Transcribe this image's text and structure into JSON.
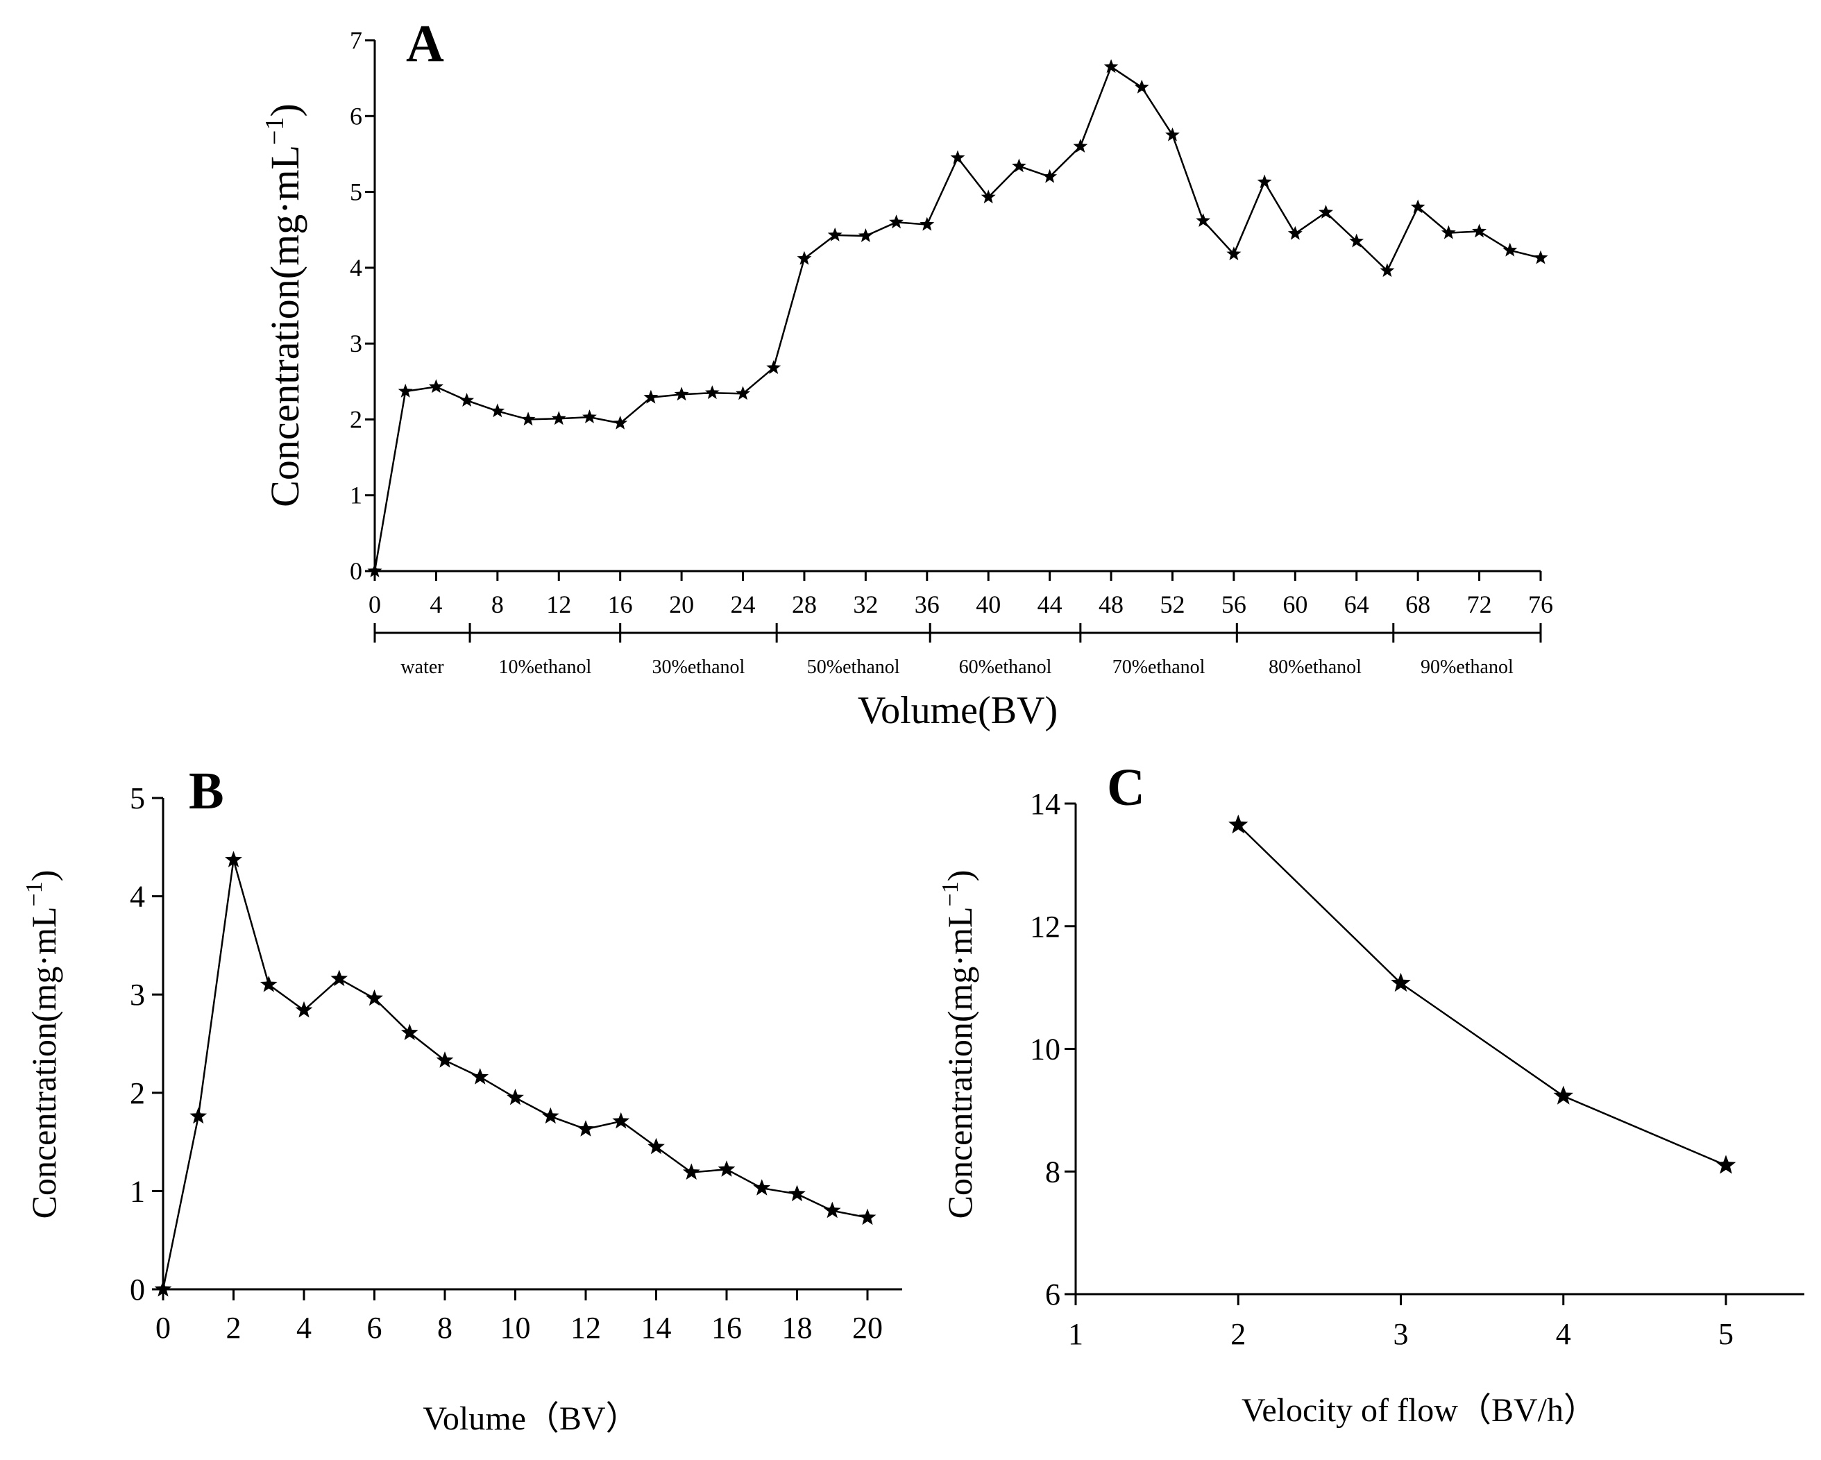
{
  "chart_data": [
    {
      "panel": "A",
      "type": "line",
      "marker": "star",
      "xlabel": "Volume(BV)",
      "ylabel": "Concentration(mg·mL",
      "ylabel_sup": "−1",
      "ylabel_close": ")",
      "xlim": [
        0,
        76
      ],
      "ylim": [
        0,
        7
      ],
      "xticks": [
        0,
        4,
        8,
        12,
        16,
        20,
        24,
        28,
        32,
        36,
        40,
        44,
        48,
        52,
        56,
        60,
        64,
        68,
        72,
        76
      ],
      "yticks": [
        0,
        1,
        2,
        3,
        4,
        5,
        6,
        7
      ],
      "x": [
        0,
        2,
        4,
        6,
        8,
        10,
        12,
        14,
        16,
        18,
        20,
        22,
        24,
        26,
        28,
        30,
        32,
        34,
        36,
        38,
        40,
        42,
        44,
        46,
        48,
        50,
        52,
        54,
        56,
        58,
        60,
        62,
        64,
        66,
        68,
        70,
        72,
        74,
        76
      ],
      "y": [
        0,
        2.37,
        2.43,
        2.25,
        2.11,
        2.0,
        2.01,
        2.03,
        1.95,
        2.29,
        2.33,
        2.35,
        2.34,
        2.68,
        4.12,
        4.43,
        4.42,
        4.6,
        4.57,
        5.45,
        4.93,
        5.34,
        5.2,
        5.6,
        6.65,
        6.38,
        5.75,
        4.62,
        4.18,
        5.13,
        4.45,
        4.73,
        4.35,
        3.96,
        4.8,
        4.46,
        4.48,
        4.23,
        4.13
      ],
      "solvent_segments": [
        {
          "label": "water",
          "start": 0,
          "end": 6.2
        },
        {
          "label": "10%ethanol",
          "start": 6.2,
          "end": 16
        },
        {
          "label": "30%ethanol",
          "start": 16,
          "end": 26.2
        },
        {
          "label": "50%ethanol",
          "start": 26.2,
          "end": 36.2
        },
        {
          "label": "60%ethanol",
          "start": 36.2,
          "end": 46
        },
        {
          "label": "70%ethanol",
          "start": 46,
          "end": 56.2
        },
        {
          "label": "80%ethanol",
          "start": 56.2,
          "end": 66.4
        },
        {
          "label": "90%ethanol",
          "start": 66.4,
          "end": 76
        }
      ]
    },
    {
      "panel": "B",
      "type": "line",
      "marker": "star",
      "xlabel": "Volume（BV）",
      "ylabel": "Concentration(mg·mL",
      "ylabel_sup": "−1",
      "ylabel_close": ")",
      "xlim": [
        0,
        21
      ],
      "ylim": [
        0,
        5
      ],
      "xticks": [
        0,
        2,
        4,
        6,
        8,
        10,
        12,
        14,
        16,
        18,
        20
      ],
      "yticks": [
        0,
        1,
        2,
        3,
        4,
        5
      ],
      "x": [
        0,
        1,
        2,
        3,
        4,
        5,
        6,
        7,
        8,
        9,
        10,
        11,
        12,
        13,
        14,
        15,
        16,
        17,
        18,
        19,
        20
      ],
      "y": [
        0,
        1.76,
        4.37,
        3.1,
        2.84,
        3.16,
        2.96,
        2.61,
        2.33,
        2.16,
        1.95,
        1.76,
        1.63,
        1.71,
        1.45,
        1.19,
        1.22,
        1.03,
        0.97,
        0.8,
        0.73
      ]
    },
    {
      "panel": "C",
      "type": "line",
      "marker": "star",
      "xlabel": "Velocity of flow（BV/h）",
      "ylabel": "Concentration(mg·mL",
      "ylabel_sup": "−1",
      "ylabel_close": ")",
      "xlim": [
        1,
        5.45
      ],
      "ylim": [
        6,
        14
      ],
      "xticks": [
        1,
        2,
        3,
        4,
        5
      ],
      "yticks": [
        6,
        8,
        10,
        12,
        14
      ],
      "x": [
        2,
        3,
        4,
        5
      ],
      "y": [
        13.65,
        11.07,
        9.23,
        8.1
      ]
    }
  ]
}
